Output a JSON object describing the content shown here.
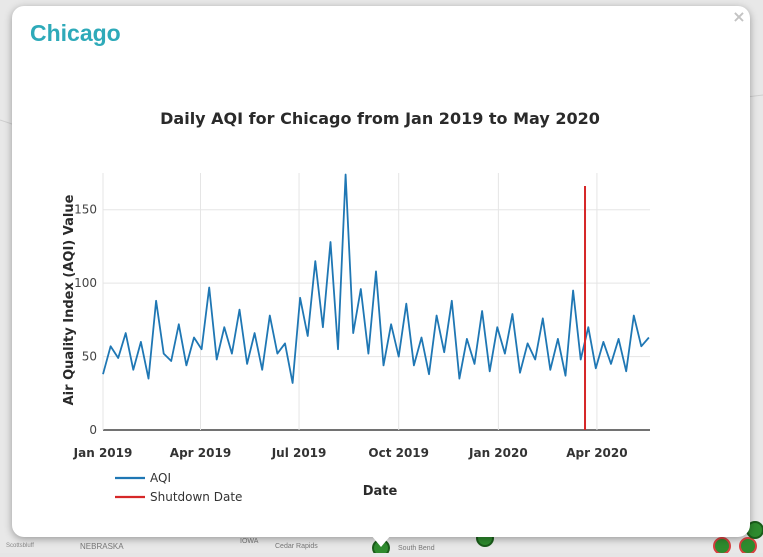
{
  "popup": {
    "city": "Chicago",
    "close_glyph": "×",
    "close_icon": "close-icon"
  },
  "map": {
    "labels": [
      "NEBRASKA",
      "IOWA",
      "Cedar Rapids",
      "South Bend",
      "Scottsbluff"
    ],
    "marker_color": "#2e8b2e",
    "marker_border": "#d94040"
  },
  "chart_data": {
    "type": "line",
    "title": "Daily AQI for Chicago from Jan 2019 to May 2020",
    "xlabel": "Date",
    "ylabel": "Air Quality Index (AQI) Value",
    "ylim": [
      0,
      175
    ],
    "xlim": [
      "2019-01-01",
      "2020-05-20"
    ],
    "yticks": [
      0,
      50,
      100,
      150
    ],
    "xticks": [
      {
        "date": "2019-01-01",
        "label": "Jan 2019"
      },
      {
        "date": "2019-04-01",
        "label": "Apr 2019"
      },
      {
        "date": "2019-07-01",
        "label": "Jul 2019"
      },
      {
        "date": "2019-10-01",
        "label": "Oct 2019"
      },
      {
        "date": "2020-01-01",
        "label": "Jan 2020"
      },
      {
        "date": "2020-04-01",
        "label": "Apr 2020"
      }
    ],
    "grid": true,
    "legend_position": "bottom-left",
    "series": [
      {
        "name": "AQI",
        "color": "#1f77b4",
        "x": [
          "2019-01-01",
          "2019-01-08",
          "2019-01-15",
          "2019-01-22",
          "2019-01-29",
          "2019-02-05",
          "2019-02-12",
          "2019-02-19",
          "2019-02-26",
          "2019-03-05",
          "2019-03-12",
          "2019-03-19",
          "2019-03-26",
          "2019-04-02",
          "2019-04-09",
          "2019-04-16",
          "2019-04-23",
          "2019-04-30",
          "2019-05-07",
          "2019-05-14",
          "2019-05-21",
          "2019-05-28",
          "2019-06-04",
          "2019-06-11",
          "2019-06-18",
          "2019-06-25",
          "2019-07-02",
          "2019-07-09",
          "2019-07-16",
          "2019-07-23",
          "2019-07-30",
          "2019-08-06",
          "2019-08-13",
          "2019-08-20",
          "2019-08-27",
          "2019-09-03",
          "2019-09-10",
          "2019-09-17",
          "2019-09-24",
          "2019-10-01",
          "2019-10-08",
          "2019-10-15",
          "2019-10-22",
          "2019-10-29",
          "2019-11-05",
          "2019-11-12",
          "2019-11-19",
          "2019-11-26",
          "2019-12-03",
          "2019-12-10",
          "2019-12-17",
          "2019-12-24",
          "2019-12-31",
          "2020-01-07",
          "2020-01-14",
          "2020-01-21",
          "2020-01-28",
          "2020-02-04",
          "2020-02-11",
          "2020-02-18",
          "2020-02-25",
          "2020-03-03",
          "2020-03-10",
          "2020-03-17",
          "2020-03-24",
          "2020-03-31",
          "2020-04-07",
          "2020-04-14",
          "2020-04-21",
          "2020-04-28",
          "2020-05-05",
          "2020-05-12",
          "2020-05-19"
        ],
        "values": [
          38,
          57,
          49,
          66,
          41,
          60,
          35,
          88,
          52,
          47,
          72,
          44,
          63,
          55,
          97,
          48,
          70,
          52,
          82,
          45,
          66,
          41,
          78,
          52,
          59,
          32,
          90,
          64,
          115,
          70,
          128,
          55,
          174,
          66,
          96,
          52,
          108,
          44,
          72,
          50,
          86,
          44,
          63,
          38,
          78,
          53,
          88,
          35,
          62,
          45,
          81,
          40,
          70,
          52,
          79,
          39,
          59,
          48,
          76,
          41,
          62,
          37,
          95,
          48,
          70,
          42,
          60,
          45,
          62,
          40,
          78,
          57,
          63
        ]
      }
    ],
    "events": [
      {
        "name": "Shutdown Date",
        "date": "2020-03-21",
        "color": "#d62728"
      }
    ]
  }
}
